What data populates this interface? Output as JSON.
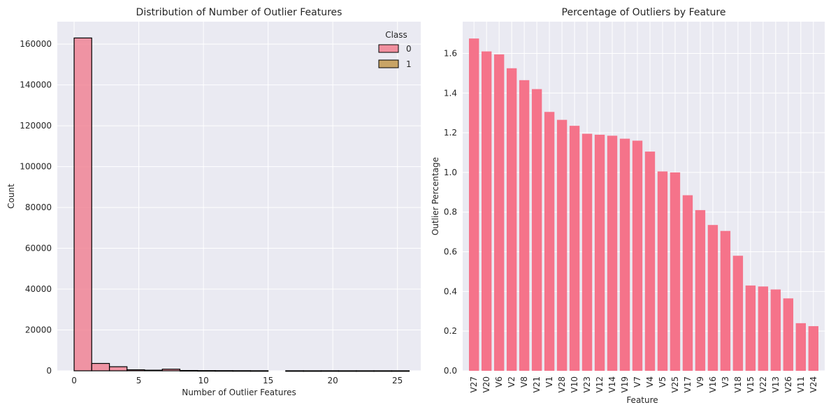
{
  "chart_data": [
    {
      "type": "histogram",
      "title": "Distribution of Number of Outlier Features",
      "xlabel": "Number of Outlier Features",
      "ylabel": "Count",
      "xlim": [
        -1.3,
        26.8
      ],
      "ylim": [
        0,
        171000
      ],
      "xticks": [
        0,
        5,
        10,
        15,
        20,
        25
      ],
      "yticks": [
        0,
        20000,
        40000,
        60000,
        80000,
        100000,
        120000,
        140000,
        160000
      ],
      "grid": true,
      "legend": {
        "title": "Class",
        "placement": "top-right",
        "entries": [
          "0",
          "1"
        ]
      },
      "series": [
        {
          "name": "0",
          "color": "#f07d8e",
          "bins": [
            {
              "x0": 0.0,
              "x1": 1.36,
              "count": 163000
            },
            {
              "x0": 1.36,
              "x1": 2.73,
              "count": 3600
            },
            {
              "x0": 2.73,
              "x1": 4.09,
              "count": 2000
            },
            {
              "x0": 4.09,
              "x1": 5.45,
              "count": 500
            },
            {
              "x0": 5.45,
              "x1": 6.82,
              "count": 300
            },
            {
              "x0": 6.82,
              "x1": 8.18,
              "count": 800
            },
            {
              "x0": 8.18,
              "x1": 9.55,
              "count": 150
            },
            {
              "x0": 9.55,
              "x1": 10.91,
              "count": 100
            },
            {
              "x0": 10.91,
              "x1": 12.27,
              "count": 80
            },
            {
              "x0": 12.27,
              "x1": 13.64,
              "count": 60
            },
            {
              "x0": 13.64,
              "x1": 15.0,
              "count": 40
            },
            {
              "x0": 16.36,
              "x1": 17.73,
              "count": 30
            },
            {
              "x0": 17.73,
              "x1": 19.09,
              "count": 20
            }
          ]
        },
        {
          "name": "1",
          "color": "#c8a466",
          "bins": [
            {
              "x0": 19.09,
              "x1": 20.45,
              "count": 30
            },
            {
              "x0": 20.45,
              "x1": 21.82,
              "count": 20
            },
            {
              "x0": 21.82,
              "x1": 23.18,
              "count": 20
            },
            {
              "x0": 23.18,
              "x1": 24.55,
              "count": 20
            },
            {
              "x0": 24.55,
              "x1": 25.91,
              "count": 20
            }
          ]
        }
      ]
    },
    {
      "type": "bar",
      "title": "Percentage of Outliers by Feature",
      "xlabel": "Feature",
      "ylabel": "Outlier Percentage",
      "ylim": [
        0,
        1.76
      ],
      "yticks": [
        "0.0",
        "0.2",
        "0.4",
        "0.6",
        "0.8",
        "1.0",
        "1.2",
        "1.4",
        "1.6"
      ],
      "grid": true,
      "color": "#f5738a",
      "categories": [
        "V27",
        "V20",
        "V6",
        "V2",
        "V8",
        "V21",
        "V1",
        "V28",
        "V10",
        "V23",
        "V12",
        "V14",
        "V19",
        "V7",
        "V4",
        "V5",
        "V25",
        "V17",
        "V9",
        "V16",
        "V3",
        "V18",
        "V15",
        "V22",
        "V13",
        "V26",
        "V11",
        "V24"
      ],
      "values": [
        1.675,
        1.61,
        1.595,
        1.525,
        1.465,
        1.42,
        1.305,
        1.265,
        1.235,
        1.195,
        1.19,
        1.185,
        1.17,
        1.16,
        1.105,
        1.005,
        1.0,
        0.885,
        0.81,
        0.735,
        0.705,
        0.58,
        0.43,
        0.425,
        0.41,
        0.365,
        0.24,
        0.225
      ]
    }
  ]
}
